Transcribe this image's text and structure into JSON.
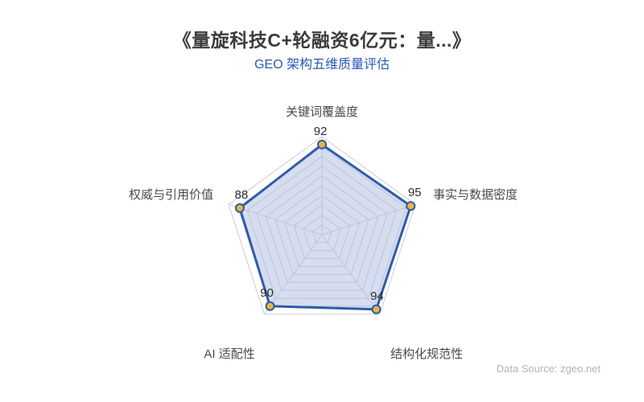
{
  "page": {
    "title": "《量旋科技C+轮融资6亿元：量...》",
    "subtitle": "GEO 架构五维质量评估",
    "data_source": "Data Source: zgeo.net"
  },
  "chart_data": {
    "type": "radar",
    "title": "GEO 架构五维质量评估",
    "categories": [
      "关键词覆盖度",
      "事实与数据密度",
      "结构化规范性",
      "AI 适配性",
      "权威与引用价值"
    ],
    "values": [
      92,
      95,
      94,
      90,
      88
    ],
    "axis_range": {
      "min": 0,
      "max": 100,
      "rings": 10
    },
    "grid": "pentagonal-web-with-spokes",
    "legend_position": "none",
    "colors": {
      "series_line": "#2e5ca8",
      "series_fill": "rgba(174,188,223,0.5)",
      "point_fill": "#e9b43e",
      "point_border": "#2e5ca8",
      "web_line": "#c9cdda",
      "subtitle_accent": "#2a58b8",
      "title_text": "#3c3c3c",
      "axis_label_text": "#4a4a4a",
      "source_text": "#b4b4bc"
    }
  }
}
